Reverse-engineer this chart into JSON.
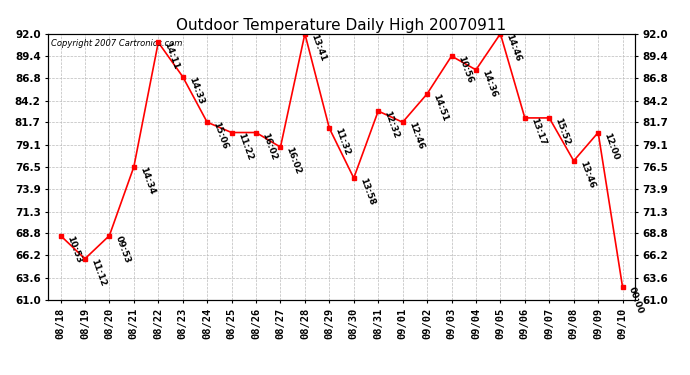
{
  "title": "Outdoor Temperature Daily High 20070911",
  "copyright": "Copyright 2007 Cartronics.com",
  "dates": [
    "08/18",
    "08/19",
    "08/20",
    "08/21",
    "08/22",
    "08/23",
    "08/24",
    "08/25",
    "08/26",
    "08/27",
    "08/28",
    "08/29",
    "08/30",
    "08/31",
    "09/01",
    "09/02",
    "09/03",
    "09/04",
    "09/05",
    "09/06",
    "09/07",
    "09/08",
    "09/09",
    "09/10"
  ],
  "values": [
    68.5,
    65.8,
    68.5,
    76.5,
    91.0,
    87.0,
    81.7,
    80.5,
    80.5,
    78.8,
    92.0,
    81.0,
    75.2,
    83.0,
    81.7,
    85.0,
    89.4,
    87.8,
    92.0,
    82.2,
    82.2,
    77.2,
    80.5,
    62.5
  ],
  "time_labels": [
    "10:53",
    "11:12",
    "09:53",
    "14:34",
    "14:11",
    "14:33",
    "15:06",
    "11:22",
    "16:02",
    "16:02",
    "13:41",
    "11:32",
    "13:58",
    "12:32",
    "12:46",
    "14:51",
    "10:56",
    "14:36",
    "14:46",
    "13:17",
    "15:52",
    "13:46",
    "12:00",
    "00:00"
  ],
  "ylim_min": 61.0,
  "ylim_max": 92.0,
  "yticks": [
    61.0,
    63.6,
    66.2,
    68.8,
    71.3,
    73.9,
    76.5,
    79.1,
    81.7,
    84.2,
    86.8,
    89.4,
    92.0
  ],
  "line_color": "red",
  "marker_color": "red",
  "bg_color": "white",
  "grid_color": "#bbbbbb",
  "title_fontsize": 11,
  "label_fontsize": 6.5,
  "tick_fontsize": 7.5,
  "copyright_fontsize": 6
}
